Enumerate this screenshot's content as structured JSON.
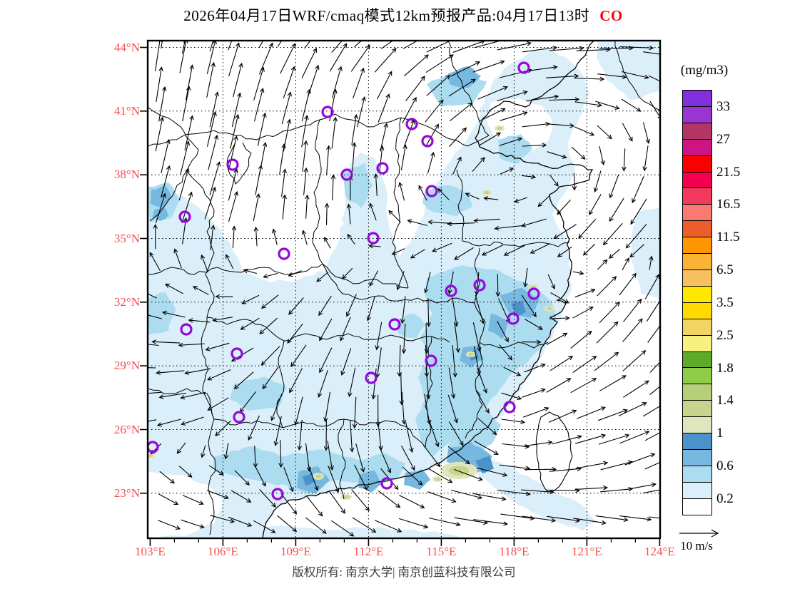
{
  "title": {
    "left": "2026年04月17日WRF/cmaq模式12km预报产品:04月17日13时",
    "species": "CO"
  },
  "axes": {
    "lat_labels": [
      "44°N",
      "41°N",
      "38°N",
      "35°N",
      "32°N",
      "29°N",
      "26°N",
      "23°N"
    ],
    "lon_labels": [
      "103°E",
      "106°E",
      "109°E",
      "112°E",
      "115°E",
      "118°E",
      "121°E",
      "124°E"
    ]
  },
  "legend": {
    "units": "(mg/m3)",
    "tick_labels": [
      "33",
      "27",
      "21.5",
      "16.5",
      "11.5",
      "6.5",
      "3.5",
      "2.5",
      "1.8",
      "1.4",
      "1",
      "0.6",
      "0.2"
    ],
    "band_colors_top_to_bottom": [
      "#8230DB",
      "#9A35CF",
      "#B23563",
      "#CC1485",
      "#FA0000",
      "#F50050",
      "#F23B5C",
      "#FA7A72",
      "#EC5D2A",
      "#FF9500",
      "#FBB335",
      "#F4C060",
      "#FFE800",
      "#FFD900",
      "#F0D565",
      "#F6F180",
      "#5CAA28",
      "#8ECC4A",
      "#B6D07A",
      "#C8D48E",
      "#E0E5BD",
      "#4B91CB",
      "#77B8E0",
      "#ACDCF0",
      "#DBEFFA",
      "#FFFFFF"
    ]
  },
  "wind_reference": {
    "label": "10 m/s"
  },
  "footer": {
    "copyright": "版权所有: 南京大学| 南京创蓝科技有限公司"
  },
  "colors": {
    "axis_label": "#F4514C",
    "species_label": "#FF0000",
    "text": "#000000",
    "footer_text": "#3C3C3C",
    "marker": "#9408D8",
    "boundary": "#000000",
    "shade_pale": "#DBEFFA",
    "shade_med": "#ACDCF0",
    "shade_dark": "#77B8E0",
    "shade_steel": "#4B91CB",
    "green_pale": "#E0E5BD",
    "green_med": "#C8D48E"
  },
  "map": {
    "markers": [
      [
        734,
        95
      ],
      [
        459,
        157
      ],
      [
        577,
        174
      ],
      [
        599,
        198
      ],
      [
        326,
        231
      ],
      [
        536,
        236
      ],
      [
        486,
        245
      ],
      [
        605,
        268
      ],
      [
        259,
        304
      ],
      [
        523,
        334
      ],
      [
        398,
        356
      ],
      [
        632,
        408
      ],
      [
        672,
        400
      ],
      [
        748,
        412
      ],
      [
        719,
        447
      ],
      [
        261,
        462
      ],
      [
        553,
        455
      ],
      [
        332,
        496
      ],
      [
        604,
        506
      ],
      [
        520,
        530
      ],
      [
        714,
        571
      ],
      [
        335,
        585
      ],
      [
        214,
        627
      ],
      [
        389,
        693
      ],
      [
        542,
        678
      ]
    ],
    "hotspots": [
      [
        643,
        660,
        26,
        12
      ],
      [
        446,
        668,
        8,
        5
      ],
      [
        485,
        697,
        8,
        4
      ],
      [
        613,
        672,
        7,
        4
      ],
      [
        660,
        497,
        7,
        4
      ],
      [
        747,
        403,
        7,
        4
      ],
      [
        770,
        433,
        7,
        4
      ],
      [
        682,
        270,
        7,
        4
      ],
      [
        700,
        180,
        7,
        4
      ],
      [
        210,
        639,
        7,
        4
      ]
    ],
    "wind_grid": {
      "cols": 9,
      "rows": 9,
      "u": [
        [
          0.1,
          0.3,
          0.55,
          0.75,
          0.9,
          0.95,
          1.0,
          1.0,
          1.0
        ],
        [
          0.15,
          0.2,
          0.3,
          0.2,
          0.5,
          0.8,
          0.9,
          0.6,
          0.2
        ],
        [
          0.2,
          0.25,
          0.15,
          0.05,
          0.15,
          0.4,
          0.5,
          -0.1,
          -0.3
        ],
        [
          0.25,
          0.3,
          0.05,
          0.0,
          -0.3,
          -0.8,
          -0.9,
          -0.5,
          -0.6
        ],
        [
          -0.5,
          -0.3,
          -0.4,
          -0.3,
          -0.1,
          0.2,
          0.4,
          0.5,
          0.3
        ],
        [
          -0.9,
          -0.7,
          -0.5,
          -0.3,
          0.0,
          0.1,
          0.5,
          0.6,
          0.5
        ],
        [
          -0.8,
          -0.6,
          -0.2,
          0.0,
          0.1,
          0.4,
          0.7,
          0.8,
          0.7
        ],
        [
          0.4,
          0.5,
          0.3,
          0.35,
          0.6,
          0.9,
          0.9,
          0.9,
          0.8
        ],
        [
          0.6,
          0.7,
          0.6,
          0.7,
          0.9,
          1.0,
          0.95,
          0.9,
          0.85
        ]
      ],
      "v": [
        [
          -0.9,
          -0.95,
          -0.8,
          -0.65,
          -0.45,
          -0.25,
          -0.1,
          -0.05,
          0.1
        ],
        [
          -1.0,
          -1.0,
          -0.9,
          -0.9,
          -0.7,
          -0.4,
          -0.1,
          0.2,
          0.5
        ],
        [
          -0.95,
          -1.0,
          -0.9,
          -0.85,
          -0.7,
          -0.4,
          0.1,
          0.5,
          0.8
        ],
        [
          -0.8,
          -0.9,
          -0.6,
          -0.5,
          -0.2,
          0.05,
          0.1,
          0.5,
          0.7
        ],
        [
          -0.3,
          -0.2,
          0.3,
          0.5,
          0.7,
          0.8,
          0.6,
          -0.5,
          -0.7
        ],
        [
          -0.1,
          0.1,
          0.5,
          0.7,
          0.9,
          0.9,
          -0.3,
          -0.6,
          -0.7
        ],
        [
          0.1,
          0.2,
          0.8,
          0.9,
          0.9,
          0.6,
          -0.4,
          -0.3,
          -0.5
        ],
        [
          0.3,
          0.2,
          0.6,
          0.7,
          0.4,
          0.2,
          0.0,
          -0.2,
          -0.4
        ],
        [
          0.2,
          0.15,
          0.3,
          0.3,
          0.15,
          0.1,
          0.2,
          0.3,
          0.35
        ]
      ]
    }
  },
  "chart_data": {
    "type": "heatmap",
    "title": "WRF/CMAQ 12km CO surface concentration forecast with wind vectors",
    "units": "mg/m3",
    "extent": {
      "lon_range": [
        103,
        124
      ],
      "lat_range": [
        23,
        44
      ]
    },
    "contour_levels": [
      0.2,
      0.6,
      1,
      1.4,
      1.8,
      2.5,
      3.5,
      6.5,
      11.5,
      16.5,
      21.5,
      27,
      33
    ],
    "wind_reference_speed": "10 m/s",
    "legend_position": "right",
    "grid": "dotted graticule every 3 degrees"
  }
}
